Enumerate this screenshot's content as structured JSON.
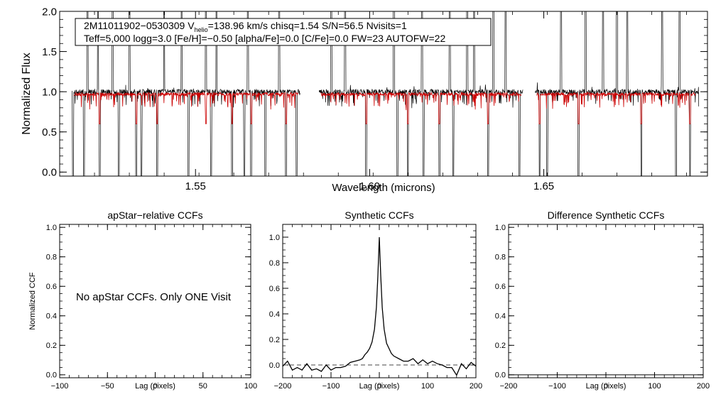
{
  "chart_data": [
    {
      "type": "line",
      "title": "",
      "xlabel": "Wavelength (microns)",
      "ylabel": "Normalized Flux",
      "xlim": [
        1.511,
        1.697
      ],
      "ylim": [
        -0.05,
        2.0
      ],
      "xticks": [
        1.55,
        1.6,
        1.65
      ],
      "xtick_labels": [
        "1.55",
        "1.60",
        "1.65"
      ],
      "yticks": [
        0.0,
        0.5,
        1.0,
        1.5,
        2.0
      ],
      "ytick_labels": [
        "0.0",
        "0.5",
        "1.0",
        "1.5",
        "2.0"
      ],
      "legend_box": {
        "line1": {
          "pre": "2M11011902−0530309  V",
          "sub": "helio",
          "post": "=138.96 km/s  chisq=1.54  S/N=56.5  Nvisits=1"
        },
        "line2": "Teff=5,000 logg=3.0 [Fe/H]=−0.50 [alpha/Fe]=0.0 [C/Fe]=0.0 FW=23 AUTOFW=22"
      },
      "chips": [
        [
          1.5145,
          1.58
        ],
        [
          1.5855,
          1.644
        ],
        [
          1.6475,
          1.6945
        ]
      ],
      "model_chips": [
        [
          1.515,
          1.5795
        ],
        [
          1.586,
          1.6435
        ],
        [
          1.648,
          1.6935
        ]
      ],
      "series": [
        {
          "color": "#000000",
          "continuum": 1.0,
          "noise": 0.03
        },
        {
          "color": "#cc0000",
          "continuum": 0.97,
          "noise": 0.02
        }
      ],
      "emission_spikes": [
        1.519,
        1.522,
        1.5262,
        1.531,
        1.541,
        1.546,
        1.553,
        1.556,
        1.565,
        1.574,
        1.589,
        1.593,
        1.607,
        1.615,
        1.623,
        1.628,
        1.63,
        1.6355,
        1.639,
        1.655,
        1.662,
        1.667,
        1.671,
        1.674,
        1.684,
        1.689,
        1.696
      ],
      "absorption_dips": [
        1.5148,
        1.518,
        1.5225,
        1.528,
        1.533,
        1.5345,
        1.539,
        1.548,
        1.553,
        1.5545,
        1.5605,
        1.564,
        1.566,
        1.57,
        1.576,
        1.579,
        1.599,
        1.608,
        1.611,
        1.6155,
        1.62,
        1.624,
        1.634,
        1.643,
        1.6488,
        1.651,
        1.66,
        1.674,
        1.678,
        1.688,
        1.692
      ]
    },
    {
      "type": "line",
      "title": "apStar−relative CCFs",
      "xlabel": "Lag (pixels)",
      "ylabel": "Normalized CCF",
      "xlim": [
        -100,
        100
      ],
      "ylim": [
        -0.02,
        1.02
      ],
      "xticks": [
        -100,
        -50,
        0,
        50,
        100
      ],
      "xtick_labels": [
        "−100",
        "−50",
        "0",
        "50",
        "100"
      ],
      "yticks": [
        0.0,
        0.2,
        0.4,
        0.6,
        0.8,
        1.0
      ],
      "ytick_labels": [
        "0.0",
        "0.2",
        "0.4",
        "0.6",
        "0.8",
        "1.0"
      ],
      "annotation": "No apStar CCFs.  Only ONE Visit",
      "series": []
    },
    {
      "type": "line",
      "title": "Synthetic CCFs",
      "xlabel": "Lag (pixels)",
      "ylabel": "",
      "xlim": [
        -200,
        200
      ],
      "ylim": [
        -0.1,
        1.1
      ],
      "xticks": [
        -200,
        -100,
        0,
        100,
        200
      ],
      "xtick_labels": [
        "−200",
        "−100",
        "0",
        "100",
        "200"
      ],
      "yticks": [
        0.0,
        0.2,
        0.4,
        0.6,
        0.8,
        1.0
      ],
      "ytick_labels": [
        "0.0",
        "0.2",
        "0.4",
        "0.6",
        "0.8",
        "1.0"
      ],
      "reference_line": 0.0,
      "series": [
        {
          "x": [
            -200,
            -190,
            -180,
            -170,
            -160,
            -150,
            -140,
            -130,
            -120,
            -110,
            -100,
            -90,
            -80,
            -70,
            -60,
            -50,
            -40,
            -35,
            -30,
            -25,
            -20,
            -15,
            -10,
            -6,
            -3,
            0,
            3,
            6,
            10,
            15,
            20,
            25,
            30,
            35,
            40,
            50,
            60,
            70,
            80,
            90,
            100,
            110,
            120,
            130,
            140,
            150,
            160,
            170,
            180,
            190,
            200
          ],
          "y": [
            -0.01,
            0.03,
            -0.04,
            -0.02,
            -0.04,
            0.01,
            -0.04,
            -0.03,
            -0.05,
            0.0,
            -0.04,
            -0.02,
            -0.02,
            -0.01,
            0.02,
            0.03,
            0.04,
            0.05,
            0.08,
            0.1,
            0.13,
            0.18,
            0.28,
            0.45,
            0.7,
            1.0,
            0.7,
            0.45,
            0.28,
            0.17,
            0.13,
            0.09,
            0.07,
            0.06,
            0.05,
            0.03,
            0.03,
            0.05,
            0.01,
            0.04,
            0.01,
            0.03,
            0.01,
            0.0,
            -0.02,
            -0.02,
            -0.08,
            0.01,
            -0.03,
            0.02,
            -0.01
          ]
        }
      ]
    },
    {
      "type": "line",
      "title": "Difference Synthetic CCFs",
      "xlabel": "Lag (pixels)",
      "ylabel": "",
      "xlim": [
        -200,
        200
      ],
      "ylim": [
        -0.02,
        1.02
      ],
      "xticks": [
        -200,
        -100,
        0,
        100,
        200
      ],
      "xtick_labels": [
        "−200",
        "−100",
        "0",
        "100",
        "200"
      ],
      "yticks": [
        0.0,
        0.2,
        0.4,
        0.6,
        0.8,
        1.0
      ],
      "ytick_labels": [
        "0.0",
        "0.2",
        "0.4",
        "0.6",
        "0.8",
        "1.0"
      ],
      "series": []
    }
  ]
}
